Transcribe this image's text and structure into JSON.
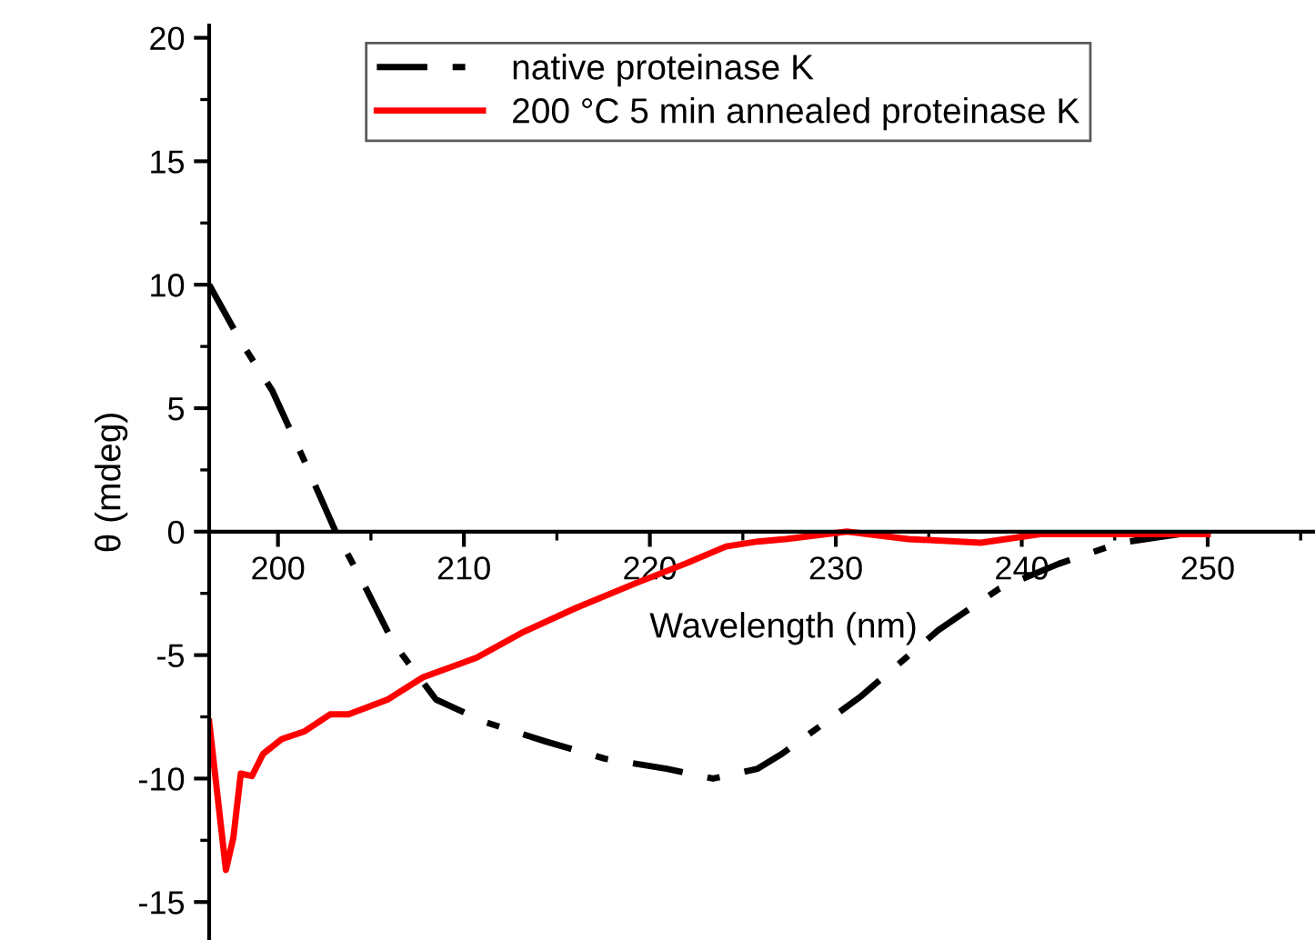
{
  "chart_data": {
    "type": "line",
    "xlabel": "Wavelength (nm)",
    "ylabel": "θ (mdeg)",
    "xlim": [
      196.3,
      255.7
    ],
    "ylim": [
      -16.5,
      20.5
    ],
    "xticks": [
      200,
      210,
      220,
      230,
      240,
      250
    ],
    "yticks": [
      -15,
      -10,
      -5,
      0,
      5,
      10,
      15,
      20
    ],
    "grid": false,
    "legend": "top",
    "marker": "none",
    "series": [
      {
        "name": "native proteinase K",
        "color": "#000000",
        "line_style": "dashdot",
        "x": [
          196.3,
          198.0,
          199.7,
          201.4,
          203.1,
          204.6,
          206.2,
          208.5,
          211.1,
          214.4,
          217.6,
          220.9,
          223.4,
          225.8,
          227.1,
          231.3,
          235.5,
          238.8,
          242.0,
          245.3,
          248.5,
          250.0
        ],
        "values": [
          10.0,
          7.7,
          5.7,
          2.9,
          0.0,
          -2.1,
          -4.5,
          -6.8,
          -7.7,
          -8.5,
          -9.2,
          -9.6,
          -10.0,
          -9.6,
          -9.0,
          -6.7,
          -4.0,
          -2.3,
          -1.3,
          -0.45,
          -0.1,
          -0.1
        ]
      },
      {
        "name": "200 °C 5 min annealed proteinase K",
        "color": "#ff0000",
        "line_style": "solid",
        "x": [
          196.3,
          197.2,
          197.6,
          198.0,
          198.6,
          199.2,
          200.2,
          201.4,
          202.8,
          203.8,
          205.9,
          207.8,
          210.7,
          213.1,
          216.0,
          219.2,
          221.9,
          224.1,
          225.8,
          227.3,
          230.6,
          233.9,
          237.8,
          241.0,
          246.9,
          250.0
        ],
        "values": [
          -7.7,
          -13.7,
          -12.4,
          -9.8,
          -9.9,
          -9.0,
          -8.4,
          -8.1,
          -7.4,
          -7.4,
          -6.8,
          -5.9,
          -5.1,
          -4.1,
          -3.1,
          -2.1,
          -1.3,
          -0.6,
          -0.4,
          -0.3,
          0.0,
          -0.3,
          -0.45,
          -0.1,
          -0.1,
          -0.1
        ]
      }
    ]
  }
}
